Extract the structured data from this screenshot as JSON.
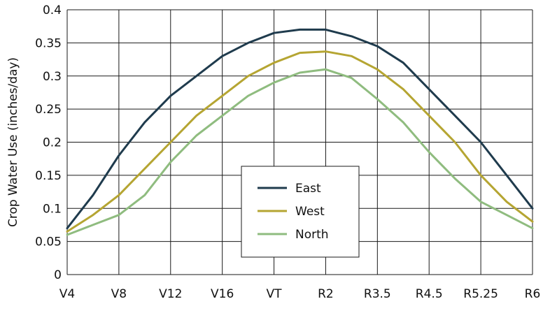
{
  "chart_data": {
    "type": "line",
    "title": "",
    "xlabel": "",
    "ylabel": "Crop Water Use (inches/day)",
    "x_tick_labels": [
      "V4",
      "V8",
      "V12",
      "V16",
      "VT",
      "R2",
      "R3.5",
      "R4.5",
      "R5.25",
      "R6"
    ],
    "x_range": [
      0,
      18
    ],
    "ylim": [
      0,
      0.4
    ],
    "y_ticks": [
      0,
      0.05,
      0.1,
      0.15,
      0.2,
      0.25,
      0.3,
      0.35,
      0.4
    ],
    "y_tick_labels": [
      "0",
      "0.05",
      "0.1",
      "0.15",
      "0.2",
      "0.25",
      "0.3",
      "0.35",
      "0.4"
    ],
    "grid": true,
    "legend_position": "center-bottom",
    "x": [
      0,
      1,
      2,
      3,
      4,
      5,
      6,
      7,
      8,
      9,
      10,
      11,
      12,
      13,
      14,
      15,
      16,
      17,
      18
    ],
    "series": [
      {
        "name": "East",
        "color": "#1f3b4d",
        "values": [
          0.07,
          0.12,
          0.18,
          0.23,
          0.27,
          0.3,
          0.33,
          0.35,
          0.365,
          0.37,
          0.37,
          0.36,
          0.345,
          0.32,
          0.28,
          0.24,
          0.2,
          0.15,
          0.1
        ]
      },
      {
        "name": "West",
        "color": "#b5a532",
        "values": [
          0.065,
          0.09,
          0.12,
          0.16,
          0.2,
          0.24,
          0.27,
          0.3,
          0.32,
          0.335,
          0.337,
          0.33,
          0.31,
          0.28,
          0.24,
          0.2,
          0.15,
          0.11,
          0.08
        ]
      },
      {
        "name": "North",
        "color": "#8fbc7f",
        "values": [
          0.06,
          0.075,
          0.09,
          0.12,
          0.17,
          0.21,
          0.24,
          0.27,
          0.29,
          0.305,
          0.31,
          0.297,
          0.265,
          0.23,
          0.185,
          0.145,
          0.11,
          0.09,
          0.07
        ]
      }
    ]
  }
}
